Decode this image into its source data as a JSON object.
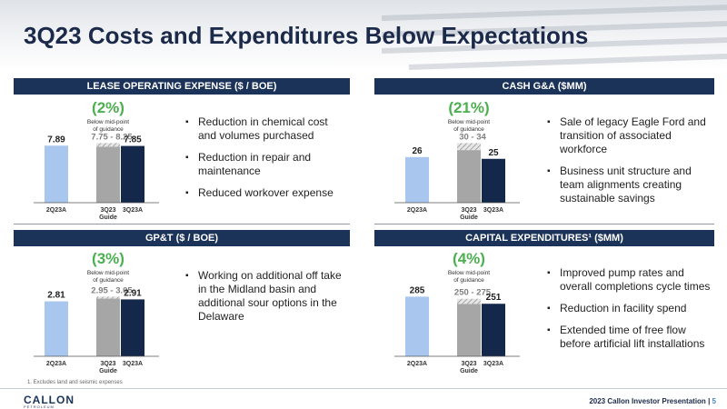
{
  "page": {
    "title": "3Q23 Costs and Expenditures Below Expectations"
  },
  "colors": {
    "navy": "#1b3259",
    "light_blue": "#a8c6ee",
    "gray": "#a6a6a6",
    "dark_navy": "#14284b",
    "green": "#4caf50"
  },
  "panels": [
    {
      "heading": "LEASE OPERATING EXPENSE ($ / BOE)",
      "bullets": [
        "Reduction in chemical cost and volumes purchased",
        "Reduction in repair and maintenance",
        "Reduced workover expense"
      ]
    },
    {
      "heading": "CASH G&A ($MM)",
      "bullets": [
        "Sale of legacy Eagle Ford and transition of associated workforce",
        "Business unit structure and team alignments creating sustainable savings"
      ]
    },
    {
      "heading": "GP&T ($ / BOE)",
      "bullets": [
        "Working on additional off take in the Midland basin and additional sour options in the Delaware"
      ]
    },
    {
      "heading": "CAPITAL EXPENDITURES¹ ($MM)",
      "bullets": [
        "Improved pump rates and overall completions cycle times",
        "Reduction in facility spend",
        "Extended time of free flow before artificial lift installations"
      ]
    }
  ],
  "chart_data": [
    {
      "type": "bar",
      "categories": [
        "2Q23A",
        "3Q23 Guide",
        "3Q23A"
      ],
      "values": [
        7.89,
        8.0,
        7.85
      ],
      "guide_range": [
        7.75,
        8.25
      ],
      "guide_label": "7.75 - 8.25",
      "data_labels": [
        "7.89",
        "",
        "7.85"
      ],
      "change_label": "(2%)",
      "change_note": "Below mid-point of guidance"
    },
    {
      "type": "bar",
      "categories": [
        "2Q23A",
        "3Q23 Guide",
        "3Q23A"
      ],
      "values": [
        26,
        32,
        25
      ],
      "guide_range": [
        30,
        34
      ],
      "guide_label": "30 - 34",
      "data_labels": [
        "26",
        "",
        "25"
      ],
      "change_label": "(21%)",
      "change_note": "Below mid-point of guidance"
    },
    {
      "type": "bar",
      "categories": [
        "2Q23A",
        "3Q23 Guide",
        "3Q23A"
      ],
      "values": [
        2.81,
        3.0,
        2.91
      ],
      "guide_range": [
        2.95,
        3.05
      ],
      "guide_label": "2.95 - 3.05",
      "data_labels": [
        "2.81",
        "",
        "2.91"
      ],
      "change_label": "(3%)",
      "change_note": "Below mid-point of guidance"
    },
    {
      "type": "bar",
      "categories": [
        "2Q23A",
        "3Q23 Guide",
        "3Q23A"
      ],
      "values": [
        285,
        262.5,
        251
      ],
      "guide_range": [
        250,
        275
      ],
      "guide_label": "250 - 275",
      "data_labels": [
        "285",
        "",
        "251"
      ],
      "change_label": "(4%)",
      "change_note": "Below mid-point of guidance"
    }
  ],
  "footnote": "1. Excludes land and seismic expenses",
  "footer": {
    "logo": "CALLON",
    "logo_sub": "PETROLEUM",
    "presentation": "2023 Callon Investor Presentation",
    "separator": "|",
    "page_number": "5"
  }
}
